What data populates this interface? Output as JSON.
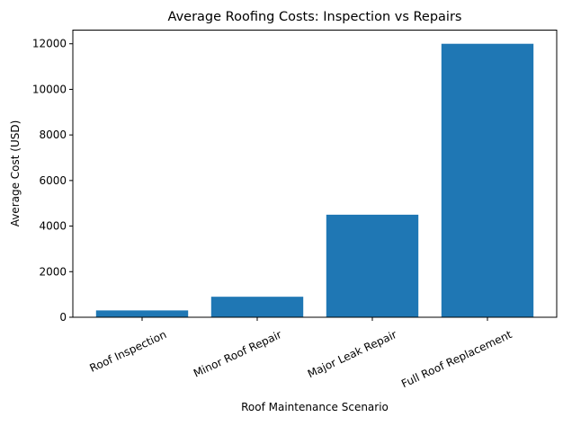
{
  "chart_data": {
    "type": "bar",
    "title": "Average Roofing Costs: Inspection vs Repairs",
    "xlabel": "Roof Maintenance Scenario",
    "ylabel": "Average Cost (USD)",
    "categories": [
      "Roof Inspection",
      "Minor Roof Repair",
      "Major Leak Repair",
      "Full Roof Replacement"
    ],
    "values": [
      300,
      900,
      4500,
      12000
    ],
    "ylim": [
      0,
      12600
    ],
    "yticks": [
      0,
      2000,
      4000,
      6000,
      8000,
      10000,
      12000
    ],
    "bar_color": "#1f77b4",
    "grid": false,
    "xtick_rotation_deg": 25
  }
}
